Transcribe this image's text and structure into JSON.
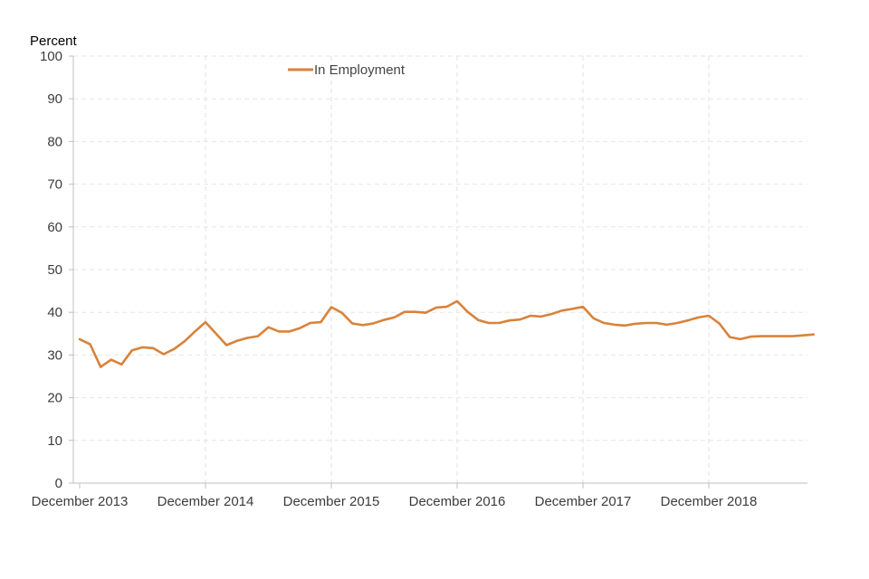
{
  "chart_data": {
    "type": "line",
    "ylabel": "Percent",
    "ylim": [
      0,
      100
    ],
    "yticks": [
      0,
      10,
      20,
      30,
      40,
      50,
      60,
      70,
      80,
      90,
      100
    ],
    "xticks": [
      "December 2013",
      "December 2014",
      "December 2015",
      "December 2016",
      "December 2017",
      "December 2018"
    ],
    "x_start": "December 2013",
    "x_interval": "month",
    "grid": true,
    "legend_position": "top",
    "series": [
      {
        "name": "In Employment",
        "color": "#d9823b",
        "values": [
          33.7,
          32.5,
          27.2,
          28.9,
          27.8,
          31.1,
          31.8,
          31.6,
          30.2,
          31.4,
          33.2,
          35.5,
          37.7,
          35.0,
          32.3,
          33.3,
          34.0,
          34.4,
          36.5,
          35.5,
          35.5,
          36.3,
          37.5,
          37.7,
          41.2,
          39.9,
          37.4,
          37.0,
          37.4,
          38.2,
          38.8,
          40.1,
          40.1,
          39.9,
          41.1,
          41.3,
          42.6,
          40.1,
          38.2,
          37.5,
          37.5,
          38.1,
          38.3,
          39.2,
          39.0,
          39.6,
          40.4,
          40.8,
          41.3,
          38.6,
          37.5,
          37.1,
          36.9,
          37.3,
          37.5,
          37.5,
          37.1,
          37.5,
          38.1,
          38.8,
          39.2,
          37.4,
          34.2,
          33.7,
          34.3,
          34.4,
          34.4,
          34.4,
          34.4,
          34.6,
          34.8
        ]
      }
    ]
  }
}
